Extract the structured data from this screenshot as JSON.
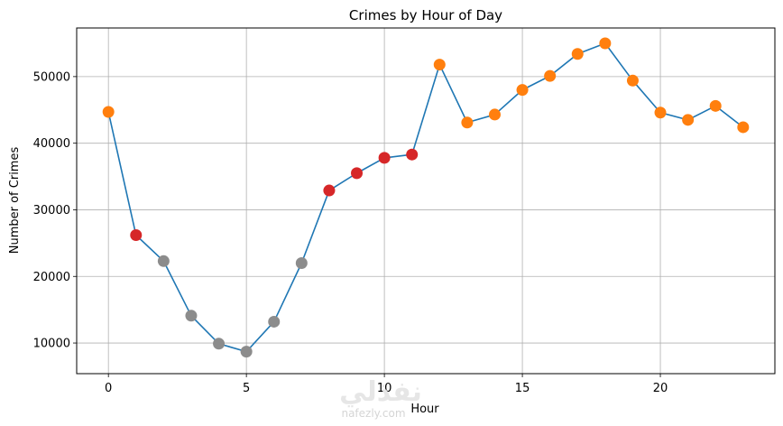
{
  "chart_data": {
    "type": "line",
    "title": "Crimes by Hour of Day",
    "xlabel": "Hour",
    "ylabel": "Number of Crimes",
    "x": [
      0,
      1,
      2,
      3,
      4,
      5,
      6,
      7,
      8,
      9,
      10,
      11,
      12,
      13,
      14,
      15,
      16,
      17,
      18,
      19,
      20,
      21,
      22,
      23
    ],
    "values": [
      44700,
      26200,
      22300,
      14100,
      9900,
      8700,
      13200,
      22000,
      32900,
      35500,
      37800,
      38300,
      51800,
      43100,
      44300,
      48000,
      50100,
      53400,
      55000,
      49400,
      44600,
      43500,
      45600,
      42400
    ],
    "marker_groups": [
      "high",
      "medium",
      "low",
      "low",
      "low",
      "low",
      "low",
      "low",
      "medium",
      "medium",
      "medium",
      "medium",
      "high",
      "high",
      "high",
      "high",
      "high",
      "high",
      "high",
      "high",
      "high",
      "high",
      "high",
      "high"
    ],
    "marker_colors": {
      "high": "#ff7f0e",
      "medium": "#d62728",
      "low": "#8c8c8c"
    },
    "line_color": "#1f77b4",
    "xlim": [
      -1.15,
      24.15
    ],
    "ylim": [
      5400,
      57300
    ],
    "xticks": [
      0,
      5,
      10,
      15,
      20
    ],
    "xtick_labels": [
      "0",
      "5",
      "10",
      "15",
      "20"
    ],
    "yticks": [
      10000,
      20000,
      30000,
      40000,
      50000
    ],
    "ytick_labels": [
      "10000",
      "20000",
      "30000",
      "40000",
      "50000"
    ],
    "grid": true
  },
  "watermark": {
    "logo_text": "نفذلي",
    "site_text": "nafezly.com"
  }
}
